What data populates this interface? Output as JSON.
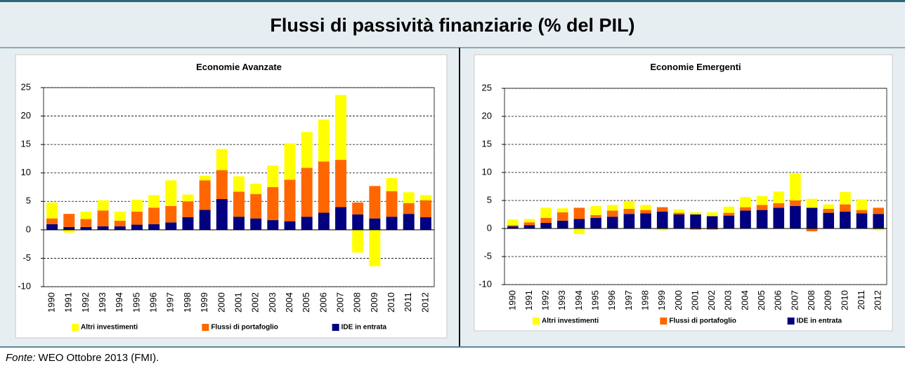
{
  "header": {
    "title": "Flussi di passività finanziarie (% del PIL)"
  },
  "chart_data": [
    {
      "type": "bar",
      "stacked": true,
      "title": "Economie Avanzate",
      "categories": [
        "1990",
        "1991",
        "1992",
        "1993",
        "1994",
        "1995",
        "1996",
        "1997",
        "1998",
        "1999",
        "2000",
        "2001",
        "2002",
        "2003",
        "2004",
        "2005",
        "2006",
        "2007",
        "2008",
        "2009",
        "2010",
        "2011",
        "2012"
      ],
      "series": [
        {
          "name": "Altri investimenti",
          "color": "#ffff00",
          "values": [
            2.8,
            -0.5,
            1.3,
            1.8,
            1.6,
            2.1,
            2.2,
            4.5,
            1.2,
            0.8,
            3.7,
            2.7,
            1.8,
            3.8,
            6.4,
            6.3,
            7.4,
            11.4,
            -4.0,
            -6.4,
            2.3,
            1.9,
            0.9
          ]
        },
        {
          "name": "Flussi di portafoglio",
          "color": "#ff6600",
          "values": [
            1.0,
            2.3,
            1.4,
            2.8,
            1.0,
            2.3,
            2.9,
            2.9,
            2.8,
            5.2,
            5.1,
            4.4,
            4.3,
            5.8,
            7.3,
            8.6,
            9.0,
            8.3,
            2.1,
            5.7,
            4.5,
            1.9,
            3.0
          ]
        },
        {
          "name": "IDE in entrata",
          "color": "#000080",
          "values": [
            1.0,
            0.5,
            0.5,
            0.6,
            0.6,
            0.9,
            1.0,
            1.3,
            2.2,
            3.5,
            5.4,
            2.3,
            2.0,
            1.7,
            1.5,
            2.3,
            3.0,
            4.0,
            2.7,
            2.0,
            2.3,
            2.8,
            2.2
          ]
        }
      ],
      "ylim": [
        -10,
        25
      ],
      "yticks": [
        -10,
        -5,
        0,
        5,
        10,
        15,
        20,
        25
      ],
      "grid": true
    },
    {
      "type": "bar",
      "stacked": true,
      "title": "Economie Emergenti",
      "categories": [
        "1990",
        "1991",
        "1992",
        "1993",
        "1994",
        "1995",
        "1996",
        "1997",
        "1998",
        "1999",
        "2000",
        "2001",
        "2002",
        "2003",
        "2004",
        "2005",
        "2006",
        "2007",
        "2008",
        "2009",
        "2010",
        "2011",
        "2012"
      ],
      "series": [
        {
          "name": "Altri investimenti",
          "color": "#ffff00",
          "values": [
            1.0,
            0.6,
            1.8,
            0.7,
            -1.0,
            1.6,
            1.0,
            1.4,
            0.9,
            -0.3,
            0.6,
            0.4,
            0.7,
            1.1,
            1.8,
            1.6,
            2.1,
            4.8,
            1.6,
            0.8,
            2.2,
            1.9,
            -0.3
          ]
        },
        {
          "name": "Flussi di portafoglio",
          "color": "#ff6600",
          "values": [
            0.2,
            0.5,
            0.9,
            1.5,
            2.0,
            0.5,
            1.1,
            0.9,
            0.6,
            0.8,
            0.3,
            -0.2,
            -0.2,
            0.5,
            0.6,
            0.9,
            0.8,
            1.0,
            -0.5,
            0.7,
            1.3,
            0.6,
            1.1
          ]
        },
        {
          "name": "IDE in entrata",
          "color": "#000080",
          "values": [
            0.4,
            0.6,
            1.0,
            1.4,
            1.7,
            1.9,
            2.1,
            2.6,
            2.7,
            3.0,
            2.5,
            2.5,
            2.2,
            2.3,
            3.2,
            3.3,
            3.7,
            4.0,
            3.7,
            2.8,
            3.0,
            2.7,
            2.6
          ]
        }
      ],
      "ylim": [
        -10,
        25
      ],
      "yticks": [
        -10,
        -5,
        0,
        5,
        10,
        15,
        20,
        25
      ],
      "grid": true
    }
  ],
  "footer": {
    "source_label": "Fonte:",
    "source_text": "WEO Ottobre 2013 (FMI)."
  }
}
